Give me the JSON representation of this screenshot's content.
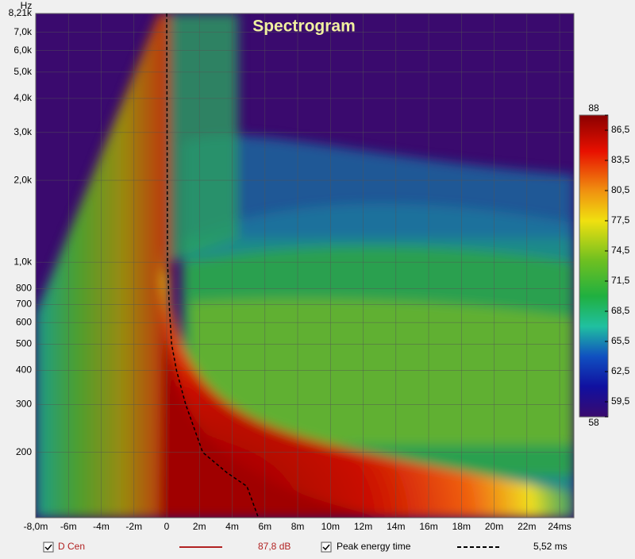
{
  "chart_data": {
    "type": "spectrogram",
    "title": "Spectrogram",
    "y_unit": "Hz",
    "xlim": [
      -8,
      24.87
    ],
    "ylim": [
      115,
      8210
    ],
    "log_y": true,
    "grid": true,
    "xticks": [
      {
        "value": -8,
        "label": "-8,0m"
      },
      {
        "value": -6,
        "label": "-6m"
      },
      {
        "value": -4,
        "label": "-4m"
      },
      {
        "value": -2,
        "label": "-2m"
      },
      0,
      {
        "value": 2,
        "label": "2m"
      },
      {
        "value": 4,
        "label": "4m"
      },
      {
        "value": 6,
        "label": "6m"
      },
      {
        "value": 8,
        "label": "8m"
      },
      {
        "value": 10,
        "label": "10m"
      },
      {
        "value": 12,
        "label": "12m"
      },
      {
        "value": 14,
        "label": "14m"
      },
      {
        "value": 16,
        "label": "16m"
      },
      {
        "value": 18,
        "label": "18m"
      },
      {
        "value": 20,
        "label": "20m"
      },
      {
        "value": 22,
        "label": "22m"
      },
      {
        "value": 24,
        "label": "24ms"
      }
    ],
    "yticks": [
      200,
      300,
      400,
      500,
      600,
      700,
      800,
      {
        "value": 1000,
        "label": "1,0k"
      },
      {
        "value": 2000,
        "label": "2,0k"
      },
      {
        "value": 3000,
        "label": "3,0k"
      },
      {
        "value": 4000,
        "label": "4,0k"
      },
      {
        "value": 5000,
        "label": "5,0k"
      },
      {
        "value": 6000,
        "label": "6,0k"
      },
      {
        "value": 7000,
        "label": "7,0k"
      },
      {
        "value": 8210,
        "label": "8,21k"
      }
    ],
    "series": [
      {
        "name": "Peak energy time",
        "color": "#000000",
        "x": [
          0,
          0.05,
          0.15,
          0.3,
          0.6,
          1.16,
          2.2,
          3.7,
          4.9,
          5.6
        ],
        "values": [
          8210,
          1000,
          700,
          500,
          400,
          300,
          200,
          168,
          150,
          115
        ]
      }
    ],
    "colorbar": {
      "lim": [
        58,
        88
      ],
      "ticks": [
        88,
        {
          "value": 86.5,
          "label": "86,5"
        },
        {
          "value": 83.5,
          "label": "83,5"
        },
        {
          "value": 80.5,
          "label": "80,5"
        },
        {
          "value": 77.5,
          "label": "77,5"
        },
        {
          "value": 74.5,
          "label": "74,5"
        },
        {
          "value": 71.5,
          "label": "71,5"
        },
        {
          "value": 68.5,
          "label": "68,5"
        },
        {
          "value": 65.5,
          "label": "65,5"
        },
        {
          "value": 62.5,
          "label": "62,5"
        },
        {
          "value": 59.5,
          "label": "59,5"
        },
        58
      ]
    },
    "legend": [
      {
        "name": "D Cen",
        "color": "#b22222",
        "value_text": "87,8 dB"
      },
      {
        "name": "Peak energy time",
        "value_text": "5,52 ms"
      }
    ]
  }
}
